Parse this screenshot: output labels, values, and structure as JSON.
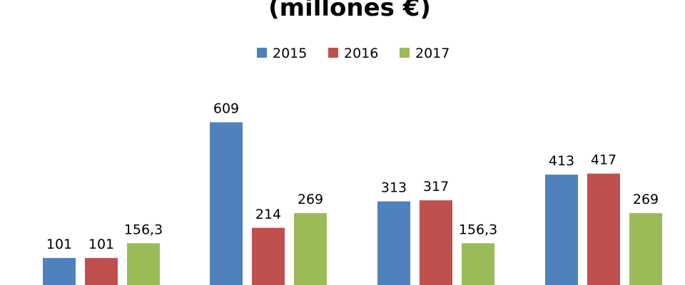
{
  "chart_data": {
    "type": "bar",
    "title": "(millones €)",
    "categories": [
      "",
      "",
      "",
      ""
    ],
    "series": [
      {
        "name": "2015",
        "color": "#4f81bd",
        "values": [
          101,
          609,
          313,
          413
        ],
        "labels": [
          "101",
          "609",
          "313",
          "413"
        ]
      },
      {
        "name": "2016",
        "color": "#c0504d",
        "values": [
          101,
          214,
          317,
          417
        ],
        "labels": [
          "101",
          "214",
          "317",
          "417"
        ]
      },
      {
        "name": "2017",
        "color": "#9bbb59",
        "values": [
          156.3,
          269,
          156.3,
          269
        ],
        "labels": [
          "156,3",
          "269",
          "156,3",
          "269"
        ]
      }
    ],
    "xlabel": "",
    "ylabel": "",
    "grid": false,
    "legend_position": "top-center"
  }
}
